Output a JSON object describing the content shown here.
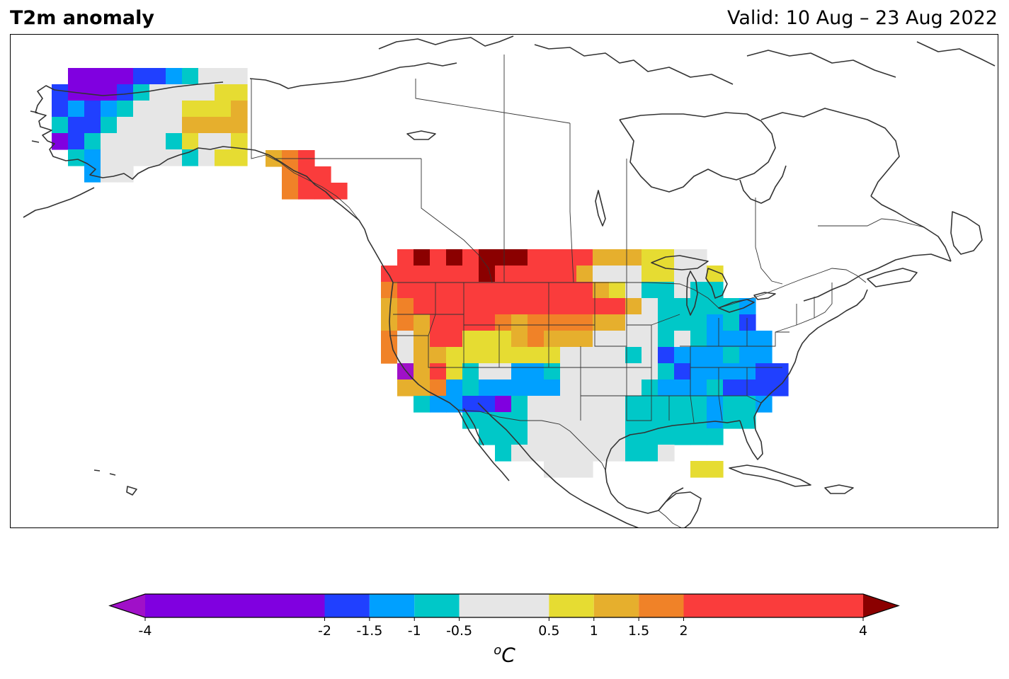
{
  "header": {
    "title": "T2m anomaly",
    "valid": "Valid: 10 Aug – 23 Aug 2022"
  },
  "colorbar": {
    "unit_base": "C",
    "unit_sup": "o",
    "ticks": [
      {
        "value": -4,
        "label": "-4"
      },
      {
        "value": -2,
        "label": "-2"
      },
      {
        "value": -1.5,
        "label": "-1.5"
      },
      {
        "value": -1,
        "label": "-1"
      },
      {
        "value": -0.5,
        "label": "-0.5"
      },
      {
        "value": 0.5,
        "label": "0.5"
      },
      {
        "value": 1,
        "label": "1"
      },
      {
        "value": 1.5,
        "label": "1.5"
      },
      {
        "value": 2,
        "label": "2"
      },
      {
        "value": 4,
        "label": "4"
      }
    ],
    "bins": [
      {
        "from": -4,
        "to": -2,
        "color": "#8000e0"
      },
      {
        "from": -2,
        "to": -1.5,
        "color": "#2040ff"
      },
      {
        "from": -1.5,
        "to": -1,
        "color": "#00a0ff"
      },
      {
        "from": -1,
        "to": -0.5,
        "color": "#00c8c8"
      },
      {
        "from": -0.5,
        "to": 0.5,
        "color": "#e6e6e6"
      },
      {
        "from": 0.5,
        "to": 1,
        "color": "#e6dc32"
      },
      {
        "from": 1,
        "to": 1.5,
        "color": "#e6af2d"
      },
      {
        "from": 1.5,
        "to": 2,
        "color": "#f08228"
      },
      {
        "from": 2,
        "to": 4,
        "color": "#fa3c3c"
      }
    ],
    "under_color": "#a010c8",
    "over_color": "#8b0000"
  },
  "map": {
    "coastline_color": "#333333",
    "border_color": "#333333",
    "anomaly_legend": {
      "P": "#8000e0",
      "B": "#2040ff",
      "L": "#00a0ff",
      "T": "#00c8c8",
      "G": "#e6e6e6",
      "Y": "#e6dc32",
      "K": "#e6af2d",
      "O": "#f08228",
      "R": "#fa3c3c",
      "D": "#8b0000",
      "M": "#a010c8"
    },
    "anomaly_grid": {
      "cell_lon_deg": 2.5,
      "cell_lat_deg": 2.5,
      "regions": [
        {
          "name": "alaska",
          "rows": [
            "..PPPPBBLTGGG",
            ".BPPPBTGGGGYY",
            ".BLBLTGGGYYYK",
            ".TBBTGGGGKKKK",
            ".PBTGGGGTYGGY",
            "..TLGGGGGTGYY",
            "...LGG......."
          ]
        },
        {
          "name": "panhandle",
          "rows": [
            "KOR.",
            ".ORR",
            ".ORRR"
          ]
        },
        {
          "name": "conus",
          "rows": [
            ".RDRDRDDDRRRRKKKYYGG",
            "RRRRRRDRRRRRKGGGYYGGY",
            "ORRRRRRRRRRRRKYGTTGTT",
            "KORRRRRRRRRRRRRKGTTTTTL",
            "KOKRRRROKOOOOKKGGTTTLTB",
            "OGKRRYYYKOKKKGGGGTGTLLLL",
            "OGKKYYYYYYYGGGGTGBLLLTLL",
            ".MKRYTGGLLTGGGGGGTBLLLLBB",
            ".KKOLTLLLLLGGGGGTLLLTBBBB",
            "..TLLBBPTGGGGGGTTTTTLTTL",
            ".....TTTTGGGGGGTTTTTLTT",
            "......TTTGGGGGGTTTTTT",
            ".......TGGGGGGGTTG",
            "..........GGG......YY"
          ]
        }
      ]
    }
  }
}
